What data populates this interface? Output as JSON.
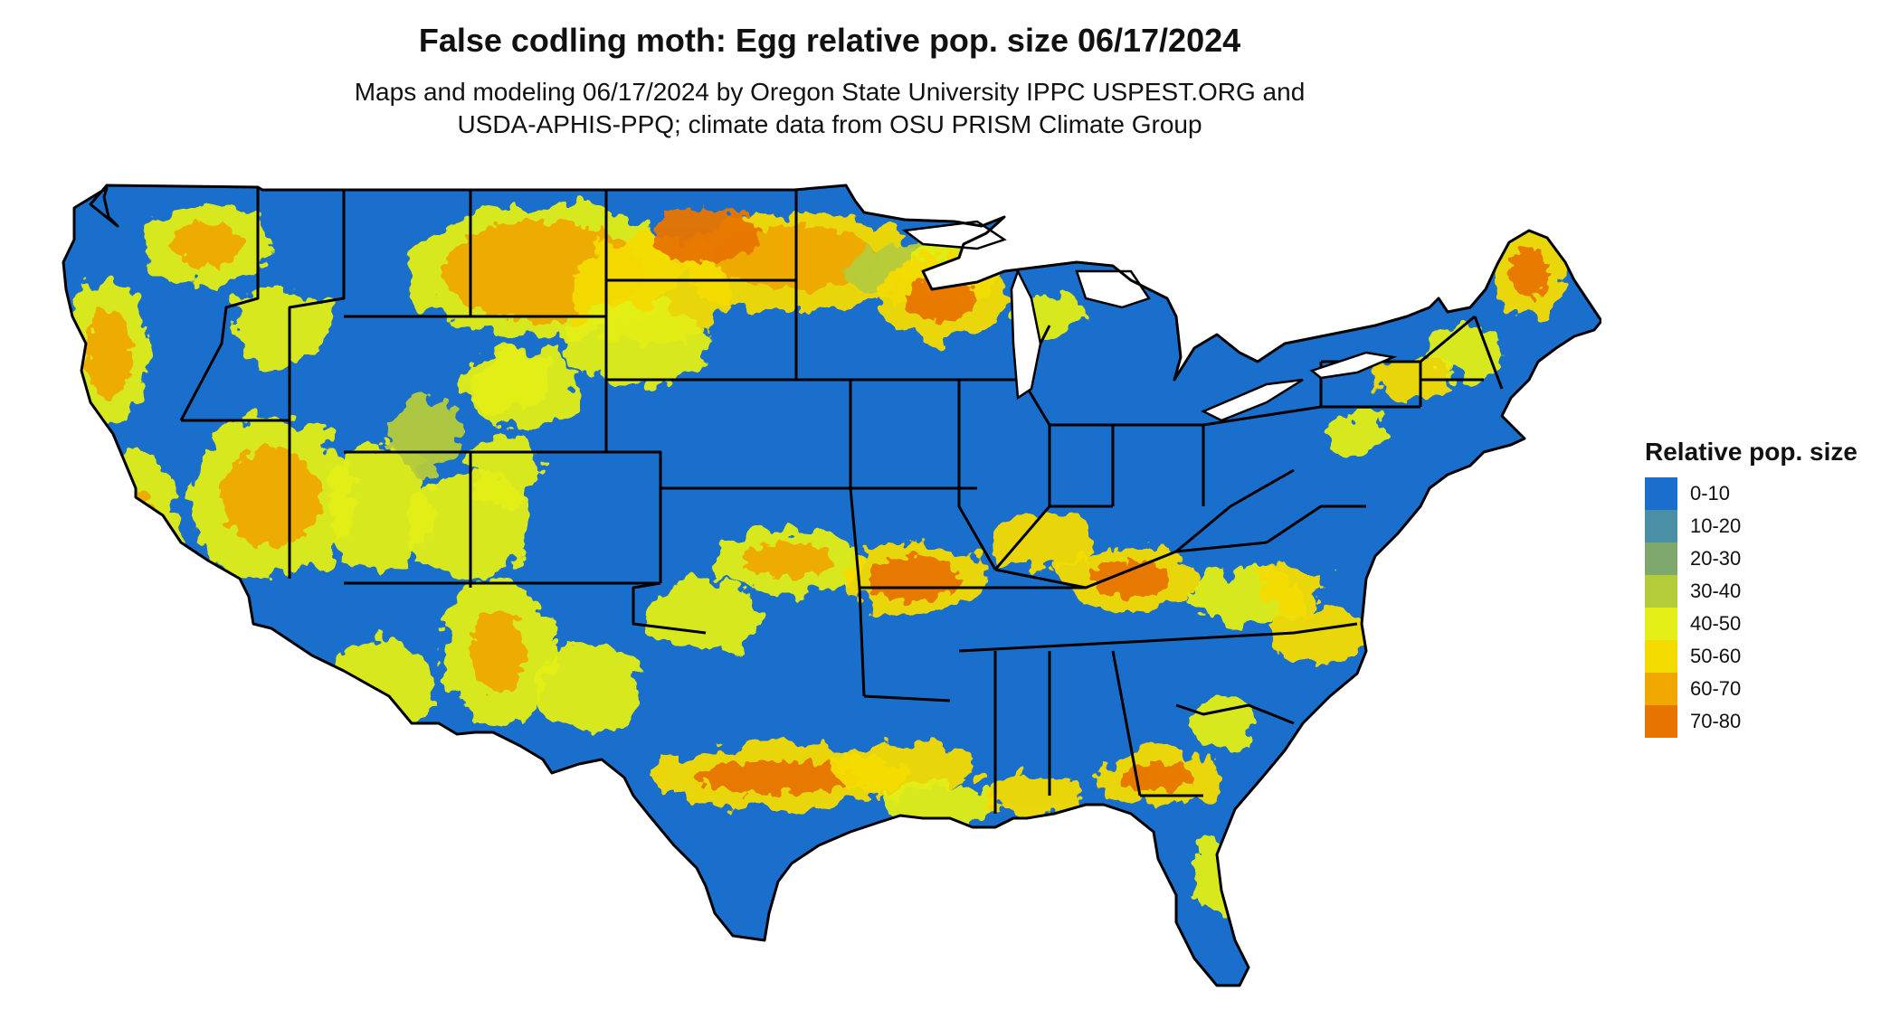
{
  "title": "False codling moth: Egg relative pop. size 06/17/2024",
  "subtitle_line1": "Maps and modeling 06/17/2024 by Oregon State University IPPC USPEST.ORG and",
  "subtitle_line2": "USDA-APHIS-PPQ; climate data from OSU PRISM Climate Group",
  "legend": {
    "title": "Relative pop. size",
    "items": [
      {
        "label": "0-10",
        "color": "#1a6fcc"
      },
      {
        "label": "10-20",
        "color": "#4a8fa6"
      },
      {
        "label": "20-30",
        "color": "#7fa86e"
      },
      {
        "label": "30-40",
        "color": "#b5cc3a"
      },
      {
        "label": "40-50",
        "color": "#e3ef16"
      },
      {
        "label": "50-60",
        "color": "#f5dc00"
      },
      {
        "label": "60-70",
        "color": "#f0a800"
      },
      {
        "label": "70-80",
        "color": "#e87400"
      }
    ]
  },
  "map": {
    "region": "Contiguous United States",
    "base_color": "#1a6fcc",
    "state_border_color": "#000000"
  }
}
